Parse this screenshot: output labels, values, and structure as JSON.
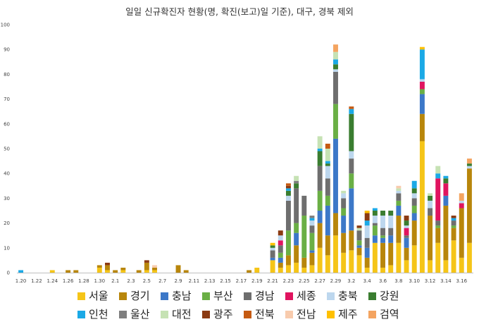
{
  "chart_data": {
    "type": "bar",
    "stacked": true,
    "title": "일일 신규확진자 현황(명, 확진(보고)일 기준), 대구, 경북 제외",
    "xlabel": "",
    "ylabel": "",
    "ylim": [
      0,
      100
    ],
    "yticks": [
      0,
      10,
      20,
      30,
      40,
      50,
      60,
      70,
      80,
      90,
      100
    ],
    "grid": false,
    "legend_position": "bottom",
    "categories": [
      "1.20",
      "1.21",
      "1.22",
      "1.23",
      "1.24",
      "1.25",
      "1.26",
      "1.27",
      "1.28",
      "1.29",
      "1.30",
      "1.31",
      "2.1",
      "2.2",
      "2.3",
      "2.4",
      "2.5",
      "2.6",
      "2.7",
      "2.8",
      "2.9",
      "2.10",
      "2.11",
      "2.12",
      "2.13",
      "2.14",
      "2.15",
      "2.16",
      "2.17",
      "2.18",
      "2.19",
      "2.20",
      "2.21",
      "2.22",
      "2.23",
      "2.24",
      "2.25",
      "2.26",
      "2.27",
      "2.28",
      "2.29",
      "3.1",
      "3.2",
      "3.3",
      "3.4",
      "3.5",
      "3.6",
      "3.7",
      "3.8",
      "3.9",
      "3.10",
      "3.11",
      "3.12",
      "3.13",
      "3.14",
      "3.15",
      "3.16",
      "3.17"
    ],
    "xtick_labels": [
      "1.20",
      "",
      "1.22",
      "",
      "1.24",
      "",
      "1.26",
      "",
      "1.28",
      "",
      "1.30",
      "",
      "2.1",
      "",
      "2.3",
      "",
      "2.5",
      "",
      "2.7",
      "",
      "2.9",
      "",
      "2.11",
      "",
      "2.13",
      "",
      "2.15",
      "",
      "2.17",
      "",
      "2.19",
      "",
      "2.21",
      "",
      "2.23",
      "",
      "2.25",
      "",
      "2.27",
      "",
      "2.29",
      "",
      "3.2",
      "",
      "3.4",
      "",
      "3.6",
      "",
      "3.8",
      "",
      "3.10",
      "",
      "3.12",
      "",
      "3.14",
      "",
      "3.16",
      ""
    ],
    "series": [
      {
        "name": "서울",
        "color": "#F5C518",
        "values": [
          0,
          0,
          0,
          0,
          1,
          0,
          0,
          0,
          0,
          0,
          2,
          1,
          0,
          1,
          0,
          0,
          1,
          1,
          0,
          0,
          0,
          0,
          0,
          0,
          0,
          0,
          0,
          0,
          0,
          0,
          2,
          0,
          5,
          2,
          3,
          4,
          2,
          3,
          10,
          7,
          15,
          8,
          9,
          7,
          2,
          12,
          2,
          3,
          12,
          5,
          11,
          53,
          5,
          12,
          5,
          13,
          6,
          12
        ]
      },
      {
        "name": "경기",
        "color": "#B8860B",
        "values": [
          0,
          0,
          0,
          0,
          0,
          0,
          1,
          1,
          0,
          0,
          1,
          2,
          1,
          1,
          0,
          1,
          3,
          1,
          0,
          0,
          3,
          1,
          0,
          0,
          0,
          0,
          0,
          0,
          0,
          1,
          0,
          0,
          0,
          2,
          4,
          7,
          4,
          5,
          10,
          8,
          9,
          8,
          8,
          3,
          4,
          0,
          10,
          9,
          11,
          5,
          10,
          11,
          18,
          6,
          22,
          5,
          20,
          30
        ]
      },
      {
        "name": "충남",
        "color": "#3C78C8",
        "values": [
          0,
          0,
          0,
          0,
          0,
          0,
          0,
          0,
          0,
          0,
          0,
          0,
          0,
          0,
          0,
          0,
          0,
          0,
          0,
          0,
          0,
          0,
          0,
          0,
          0,
          0,
          0,
          0,
          0,
          0,
          0,
          0,
          1,
          2,
          0,
          5,
          0,
          1,
          5,
          12,
          30,
          7,
          17,
          1,
          4,
          3,
          2,
          3,
          4,
          4,
          3,
          8,
          0,
          0,
          4,
          0,
          0,
          0
        ]
      },
      {
        "name": "부산",
        "color": "#6AAF45",
        "values": [
          0,
          0,
          0,
          0,
          0,
          0,
          0,
          0,
          0,
          0,
          0,
          0,
          0,
          0,
          0,
          0,
          0,
          0,
          0,
          0,
          0,
          0,
          0,
          0,
          0,
          0,
          0,
          0,
          0,
          0,
          0,
          0,
          0,
          2,
          10,
          4,
          17,
          7,
          8,
          4,
          14,
          3,
          6,
          2,
          0,
          4,
          1,
          0,
          2,
          0,
          3,
          2,
          0,
          1,
          0,
          1,
          0,
          0
        ]
      },
      {
        "name": "경남",
        "color": "#6E6E6E",
        "values": [
          0,
          0,
          0,
          0,
          0,
          0,
          0,
          0,
          0,
          0,
          0,
          0,
          0,
          0,
          0,
          0,
          0,
          0,
          0,
          0,
          0,
          0,
          0,
          0,
          0,
          0,
          0,
          0,
          0,
          0,
          0,
          0,
          3,
          3,
          12,
          14,
          8,
          3,
          10,
          7,
          13,
          4,
          6,
          4,
          4,
          1,
          3,
          3,
          3,
          1,
          3,
          0,
          3,
          2,
          0,
          2,
          0,
          0
        ]
      },
      {
        "name": "세종",
        "color": "#E0145F",
        "values": [
          0,
          0,
          0,
          0,
          0,
          0,
          0,
          0,
          0,
          0,
          0,
          0,
          0,
          0,
          0,
          0,
          0,
          0,
          0,
          0,
          0,
          0,
          0,
          0,
          0,
          0,
          0,
          0,
          0,
          0,
          0,
          0,
          0,
          2,
          0,
          0,
          0,
          0,
          0,
          0,
          0,
          0,
          0,
          0,
          0,
          0,
          0,
          0,
          0,
          3,
          0,
          3,
          0,
          17,
          5,
          0,
          2,
          0
        ]
      },
      {
        "name": "충북",
        "color": "#BDD7EE",
        "values": [
          0,
          0,
          0,
          0,
          0,
          0,
          0,
          0,
          0,
          0,
          0,
          0,
          0,
          0,
          0,
          0,
          0,
          0,
          0,
          0,
          0,
          0,
          0,
          0,
          0,
          0,
          0,
          0,
          0,
          0,
          0,
          0,
          1,
          2,
          2,
          0,
          0,
          2,
          0,
          5,
          1,
          2,
          3,
          0,
          5,
          3,
          5,
          5,
          1,
          1,
          2,
          1,
          3,
          0,
          0,
          0,
          1,
          1
        ]
      },
      {
        "name": "강원",
        "color": "#3A7D30",
        "values": [
          0,
          0,
          0,
          0,
          0,
          0,
          0,
          0,
          0,
          0,
          0,
          0,
          0,
          0,
          0,
          0,
          0,
          0,
          0,
          0,
          0,
          0,
          0,
          0,
          0,
          0,
          0,
          0,
          0,
          0,
          0,
          0,
          1,
          0,
          2,
          2,
          0,
          0,
          6,
          1,
          2,
          0,
          15,
          0,
          0,
          2,
          2,
          2,
          0,
          2,
          2,
          0,
          2,
          0,
          2,
          0,
          0,
          1
        ]
      },
      {
        "name": "인천",
        "color": "#1BA9E6",
        "values": [
          1,
          0,
          0,
          0,
          0,
          0,
          0,
          0,
          0,
          0,
          0,
          0,
          0,
          0,
          0,
          0,
          0,
          0,
          0,
          0,
          0,
          0,
          0,
          0,
          0,
          0,
          0,
          0,
          0,
          0,
          0,
          0,
          0,
          0,
          1,
          0,
          0,
          1,
          1,
          1,
          2,
          0,
          2,
          0,
          2,
          1,
          0,
          0,
          0,
          0,
          3,
          12,
          0,
          2,
          1,
          1,
          0,
          0
        ]
      },
      {
        "name": "울산",
        "color": "#7F7F7F",
        "values": [
          0,
          0,
          0,
          0,
          0,
          0,
          0,
          0,
          0,
          0,
          0,
          0,
          0,
          0,
          0,
          0,
          0,
          0,
          0,
          0,
          0,
          0,
          0,
          0,
          0,
          0,
          0,
          0,
          0,
          0,
          0,
          0,
          0,
          0,
          0,
          1,
          0,
          1,
          0,
          0,
          0,
          0,
          0,
          0,
          0,
          0,
          0,
          0,
          0,
          0,
          0,
          0,
          0,
          0,
          0,
          0,
          0,
          0
        ]
      },
      {
        "name": "대전",
        "color": "#C6E2B4",
        "values": [
          0,
          0,
          0,
          0,
          0,
          0,
          0,
          0,
          0,
          0,
          0,
          0,
          0,
          0,
          0,
          0,
          0,
          0,
          0,
          0,
          0,
          0,
          0,
          0,
          0,
          0,
          0,
          0,
          0,
          0,
          0,
          0,
          0,
          0,
          0,
          2,
          0,
          0,
          5,
          5,
          3,
          1,
          0,
          1,
          0,
          0,
          0,
          0,
          1,
          0,
          0,
          0,
          1,
          3,
          0,
          0,
          0,
          0
        ]
      },
      {
        "name": "광주",
        "color": "#8B3A12",
        "values": [
          0,
          0,
          0,
          0,
          0,
          0,
          0,
          0,
          0,
          0,
          0,
          1,
          0,
          0,
          0,
          0,
          1,
          0,
          0,
          0,
          0,
          0,
          0,
          0,
          0,
          0,
          0,
          0,
          0,
          0,
          0,
          0,
          0,
          2,
          1,
          0,
          0,
          0,
          0,
          0,
          0,
          0,
          0,
          1,
          3,
          0,
          0,
          0,
          0,
          2,
          0,
          0,
          0,
          0,
          0,
          1,
          0,
          0
        ]
      },
      {
        "name": "전북",
        "color": "#C55A11",
        "values": [
          0,
          0,
          0,
          0,
          0,
          0,
          0,
          0,
          0,
          0,
          0,
          0,
          0,
          0,
          0,
          0,
          0,
          0,
          0,
          0,
          0,
          0,
          0,
          0,
          0,
          0,
          0,
          0,
          0,
          0,
          0,
          0,
          0,
          0,
          1,
          0,
          0,
          0,
          0,
          2,
          0,
          0,
          1,
          0,
          0,
          0,
          0,
          0,
          0,
          0,
          0,
          0,
          0,
          0,
          0,
          0,
          0,
          0
        ]
      },
      {
        "name": "전남",
        "color": "#F8CBAD",
        "values": [
          0,
          0,
          0,
          0,
          0,
          0,
          0,
          0,
          0,
          0,
          0,
          0,
          0,
          0,
          0,
          0,
          0,
          1,
          0,
          0,
          0,
          0,
          0,
          0,
          0,
          0,
          0,
          0,
          0,
          0,
          0,
          0,
          0,
          0,
          0,
          0,
          0,
          0,
          0,
          0,
          0,
          0,
          0,
          0,
          0,
          0,
          0,
          0,
          1,
          0,
          0,
          0,
          0,
          0,
          0,
          0,
          0,
          0
        ]
      },
      {
        "name": "제주",
        "color": "#FFC000",
        "values": [
          0,
          0,
          0,
          0,
          0,
          0,
          0,
          0,
          0,
          0,
          0,
          0,
          0,
          0,
          0,
          0,
          0,
          0,
          0,
          0,
          0,
          0,
          0,
          0,
          0,
          0,
          0,
          0,
          0,
          0,
          0,
          0,
          1,
          0,
          0,
          0,
          0,
          0,
          0,
          0,
          0,
          0,
          0,
          0,
          1,
          0,
          0,
          0,
          0,
          0,
          0,
          1,
          0,
          0,
          0,
          0,
          0,
          0
        ]
      },
      {
        "name": "검역",
        "color": "#F4A460",
        "values": [
          0,
          0,
          0,
          0,
          0,
          0,
          0,
          0,
          0,
          0,
          0,
          0,
          0,
          0,
          0,
          0,
          0,
          0,
          0,
          0,
          0,
          0,
          0,
          0,
          0,
          0,
          0,
          0,
          0,
          0,
          0,
          0,
          0,
          0,
          0,
          0,
          0,
          0,
          0,
          0,
          3,
          0,
          0,
          0,
          0,
          0,
          0,
          0,
          0,
          0,
          0,
          0,
          0,
          0,
          0,
          0,
          3,
          2
        ]
      }
    ]
  }
}
